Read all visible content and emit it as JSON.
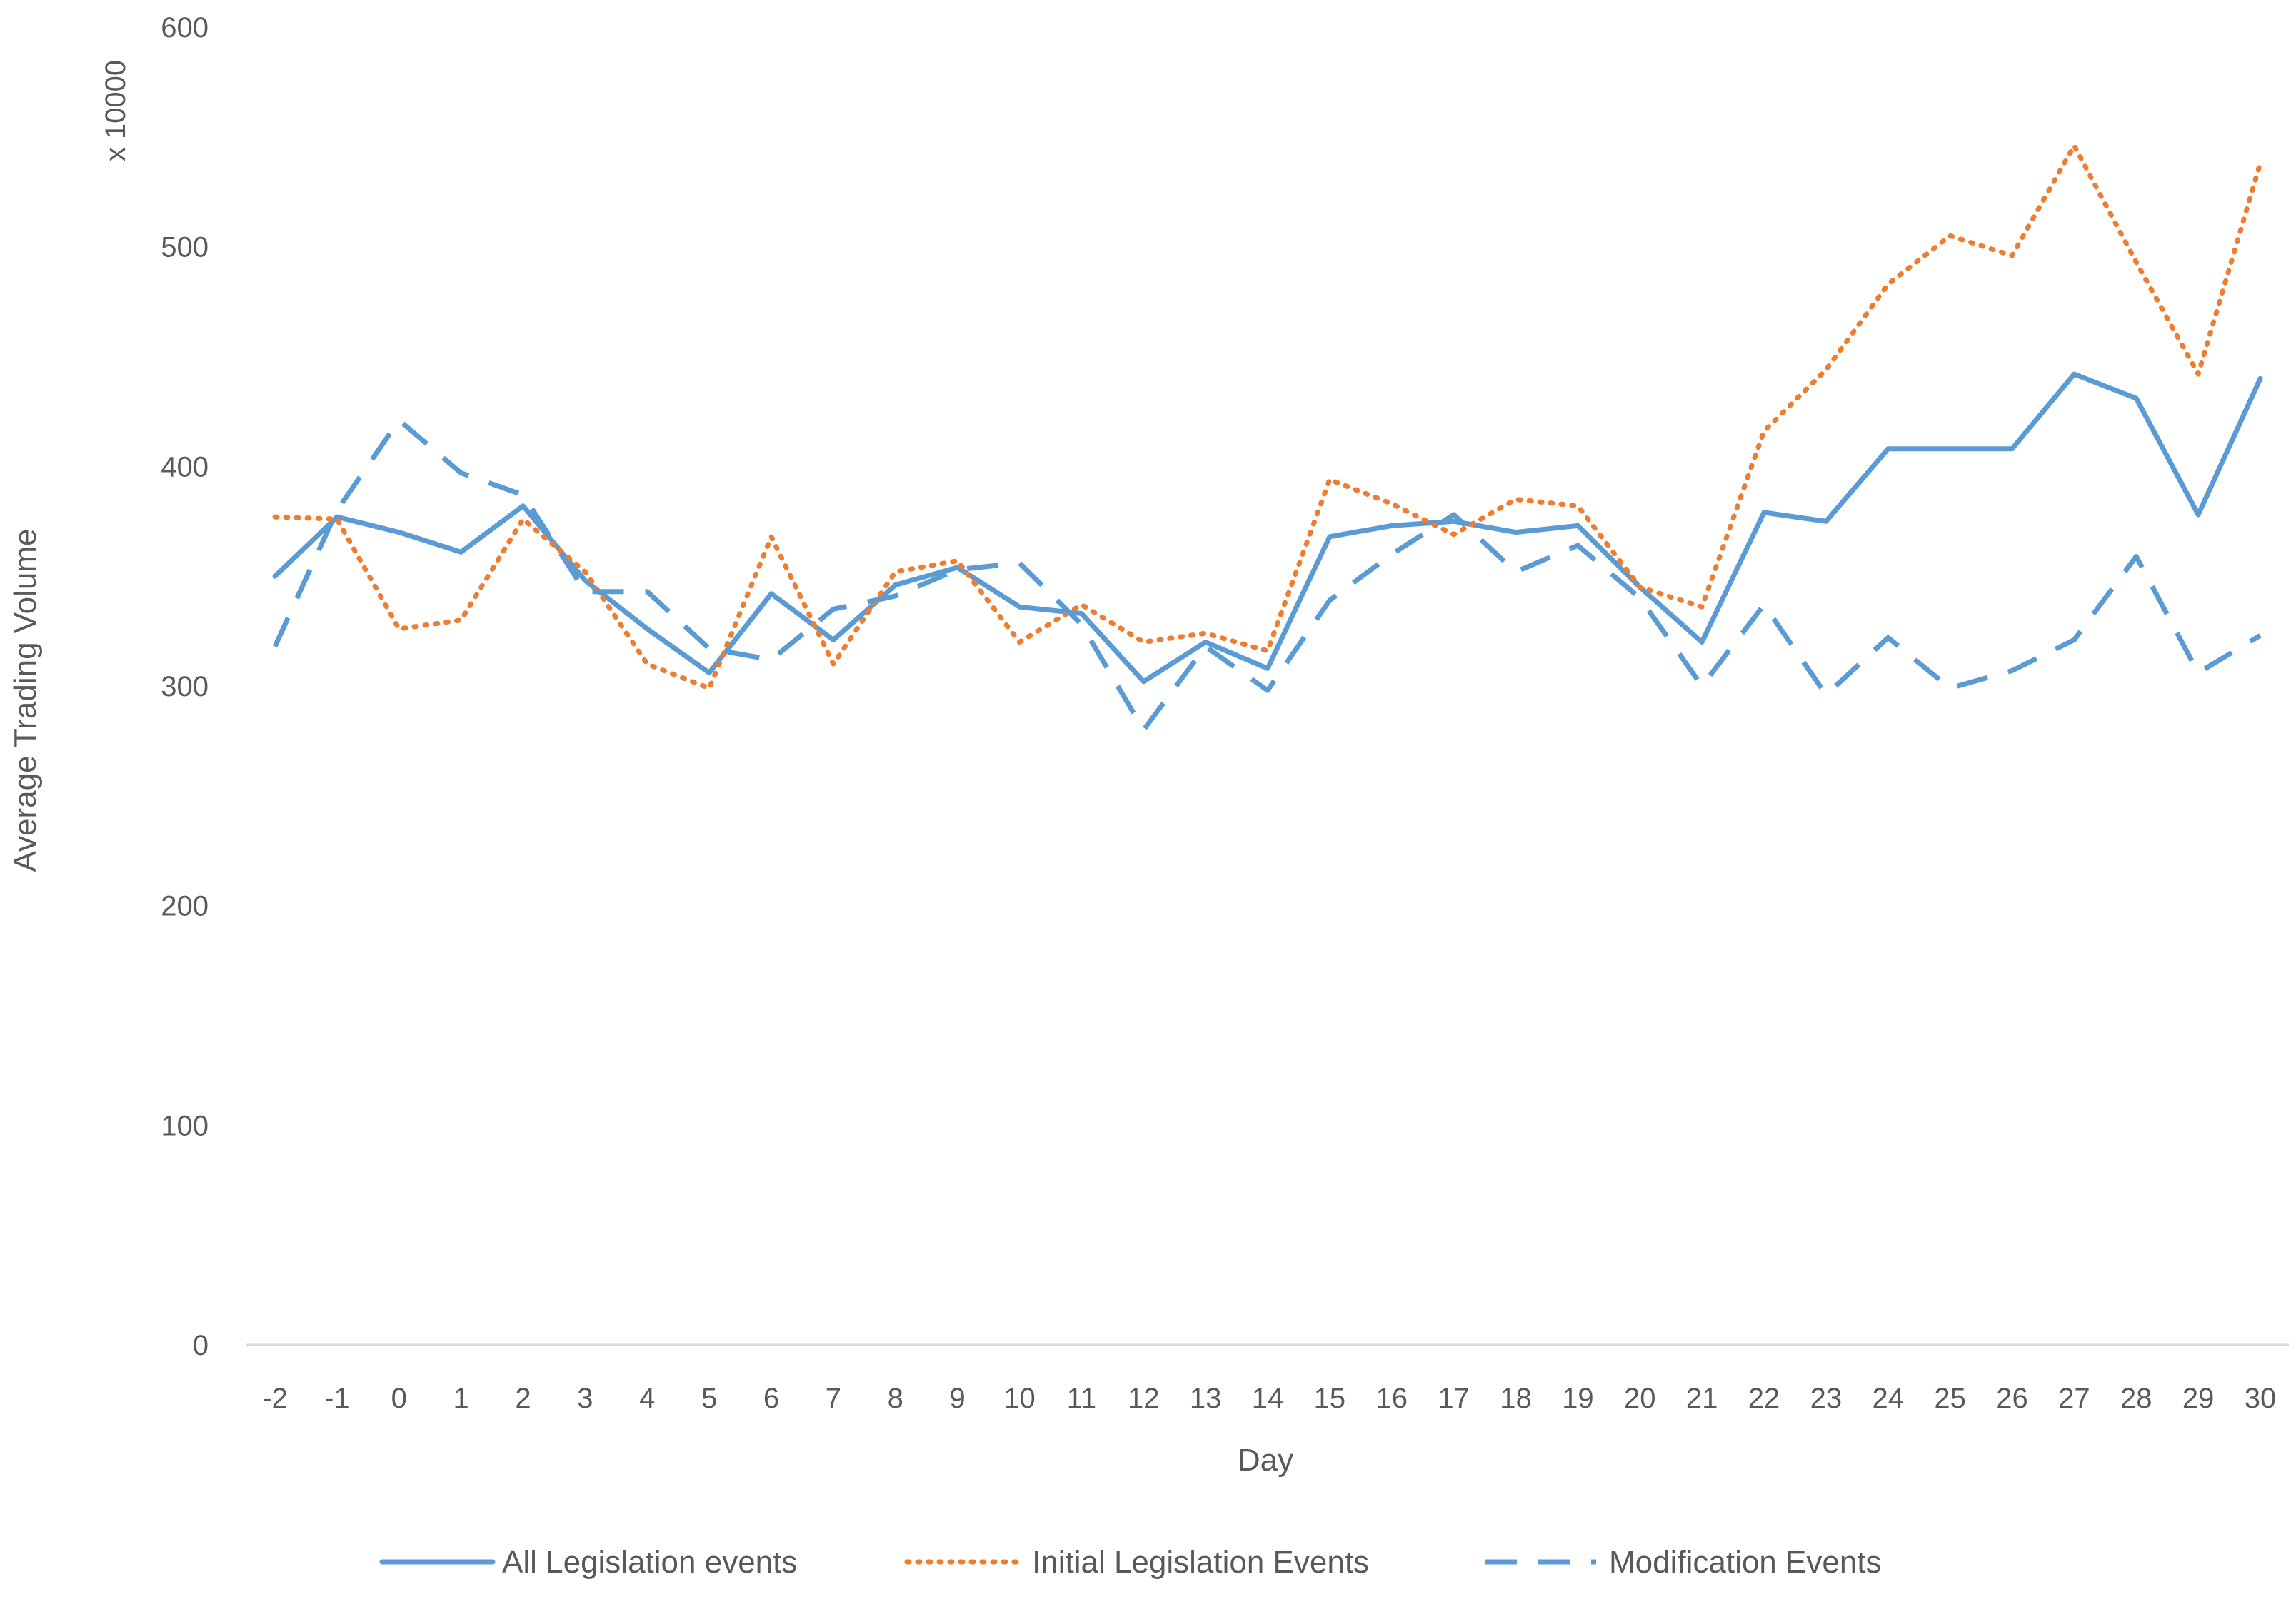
{
  "chart_data": {
    "type": "line",
    "title": "",
    "xlabel": "Day",
    "ylabel": "Average Trading Volume",
    "y_unit_label": "x 10000",
    "ylim": [
      0,
      600
    ],
    "yticks": [
      0,
      100,
      200,
      300,
      400,
      500,
      600
    ],
    "grid": false,
    "legend_position": "bottom",
    "categories": [
      "-2",
      "-1",
      "0",
      "1",
      "2",
      "3",
      "4",
      "5",
      "6",
      "7",
      "8",
      "9",
      "10",
      "11",
      "12",
      "13",
      "14",
      "15",
      "16",
      "17",
      "18",
      "19",
      "20",
      "21",
      "22",
      "23",
      "24",
      "25",
      "26",
      "27",
      "28",
      "29",
      "30"
    ],
    "series": [
      {
        "name": "All Legislation events",
        "color": "#5B9BD5",
        "line_style": "solid",
        "values": [
          350,
          377,
          370,
          361,
          382,
          348,
          326,
          306,
          342,
          321,
          346,
          354,
          336,
          333,
          302,
          320,
          308,
          368,
          373,
          375,
          370,
          373,
          345,
          320,
          379,
          375,
          408,
          408,
          408,
          442,
          431,
          378,
          440
        ]
      },
      {
        "name": "Initial Legislation Events",
        "color": "#ED7D31",
        "line_style": "dotted",
        "values": [
          377,
          376,
          326,
          330,
          376,
          352,
          310,
          299,
          368,
          310,
          352,
          357,
          320,
          337,
          320,
          324,
          316,
          394,
          383,
          369,
          385,
          382,
          345,
          336,
          416,
          444,
          483,
          505,
          496,
          546,
          493,
          442,
          538
        ]
      },
      {
        "name": "Modification Events",
        "color": "#5B9BD5",
        "line_style": "dashed",
        "values": [
          318,
          380,
          421,
          397,
          387,
          343,
          343,
          317,
          312,
          335,
          341,
          353,
          356,
          328,
          280,
          318,
          298,
          339,
          360,
          378,
          352,
          364,
          340,
          300,
          337,
          296,
          322,
          299,
          307,
          321,
          359,
          306,
          323
        ]
      }
    ]
  }
}
